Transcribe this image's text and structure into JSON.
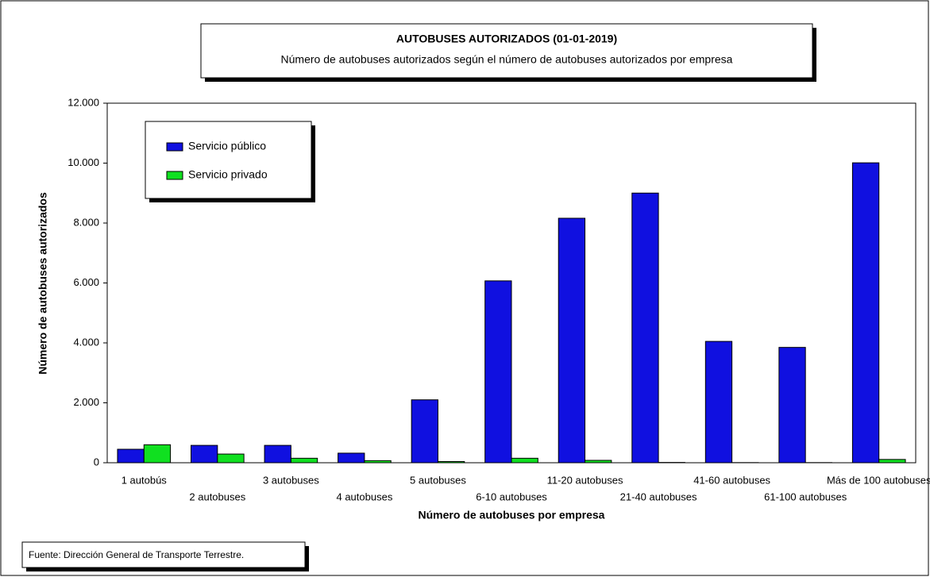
{
  "chart_data": {
    "type": "bar",
    "title": "AUTOBUSES AUTORIZADOS (01-01-2019)",
    "subtitle": "Número de autobuses autorizados según el número de autobuses autorizados por empresa",
    "x_label": "Número de autobuses por empresa",
    "y_label": "Número de autobuses autorizados",
    "source": "Fuente: Dirección General de Transporte Terrestre.",
    "categories": [
      "1 autobús",
      "2 autobuses",
      "3 autobuses",
      "4 autobuses",
      "5 autobuses",
      "6-10 autobuses",
      "11-20 autobuses",
      "21-40 autobuses",
      "41-60 autobuses",
      "61-100 autobuses",
      "Más de 100 autobuses"
    ],
    "series": [
      {
        "name": "Servicio público",
        "color": "#1010e0",
        "values": [
          450,
          580,
          580,
          320,
          2100,
          6070,
          8160,
          9000,
          4050,
          3850,
          10010
        ]
      },
      {
        "name": "Servicio privado",
        "color": "#10e020",
        "values": [
          600,
          290,
          150,
          70,
          40,
          150,
          80,
          10,
          5,
          5,
          110
        ]
      }
    ],
    "ylim": [
      0,
      12000
    ],
    "yticks": [
      0,
      {
        "value": 2000,
        "label": "2.000"
      },
      {
        "value": 4000,
        "label": "4.000"
      },
      {
        "value": 6000,
        "label": "6.000"
      },
      {
        "value": 8000,
        "label": "8.000"
      },
      {
        "value": 10000,
        "label": "10.000"
      },
      {
        "value": 12000,
        "label": "12.000"
      }
    ],
    "legend": "top-left"
  }
}
